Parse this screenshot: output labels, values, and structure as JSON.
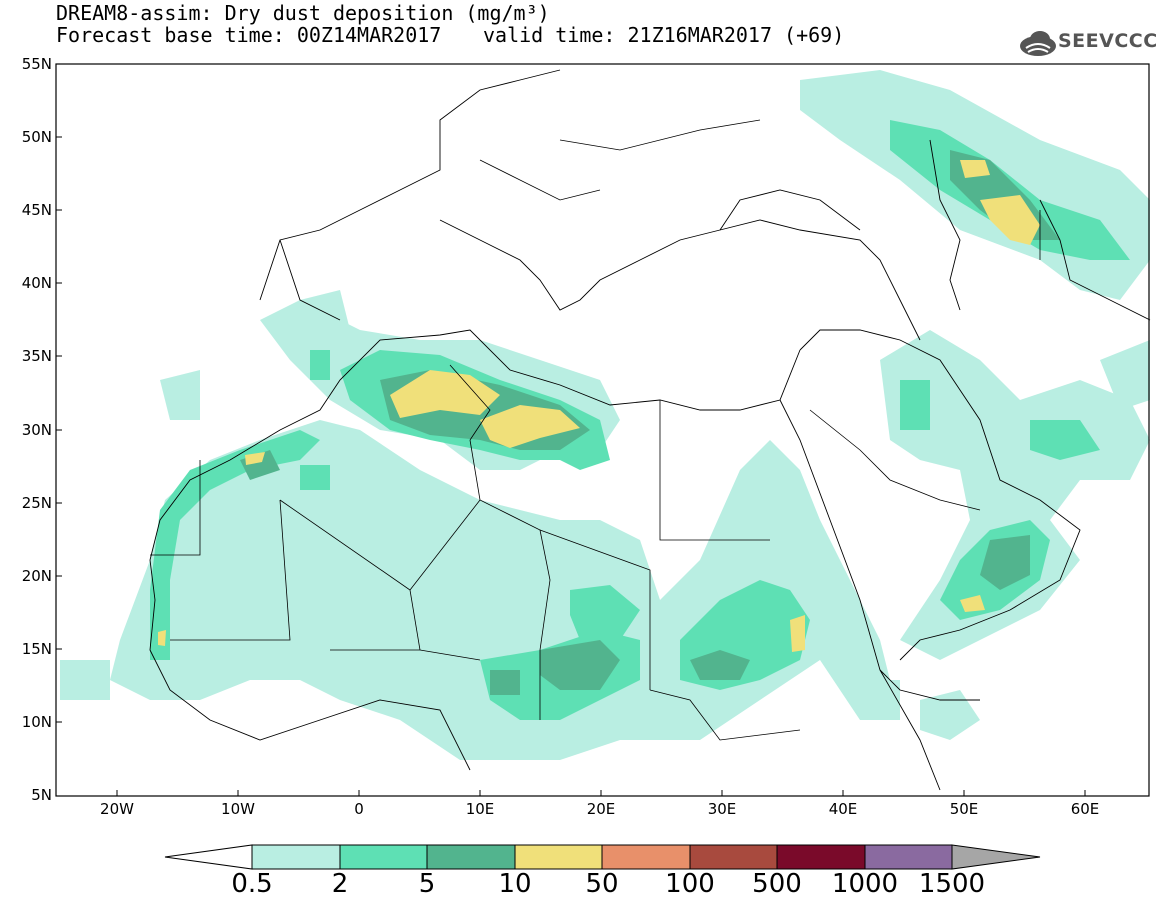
{
  "header": {
    "title_line1": "DREAM8-assim: Dry dust deposition (mg/m³)",
    "title_line2": "Forecast base time: 00Z14MAR2017",
    "valid_time": "valid time: 21Z16MAR2017 (+69)",
    "logo_text": "SEEVCCC"
  },
  "map": {
    "lat_ticks": [
      "55N",
      "50N",
      "45N",
      "40N",
      "35N",
      "30N",
      "25N",
      "20N",
      "15N",
      "10N",
      "5N"
    ],
    "lon_ticks": [
      "20W",
      "10W",
      "0",
      "10E",
      "20E",
      "30E",
      "40E",
      "50E",
      "60E"
    ]
  },
  "colorbar": {
    "labels": [
      "0.5",
      "2",
      "5",
      "10",
      "50",
      "100",
      "500",
      "1000",
      "1500"
    ],
    "colors": [
      "#ffffff",
      "#b9eee2",
      "#5ee0b4",
      "#52b48e",
      "#f0e07a",
      "#e8906a",
      "#a84a3e",
      "#7a0a2a",
      "#8a6aa0",
      "#a6a6a6"
    ]
  }
}
